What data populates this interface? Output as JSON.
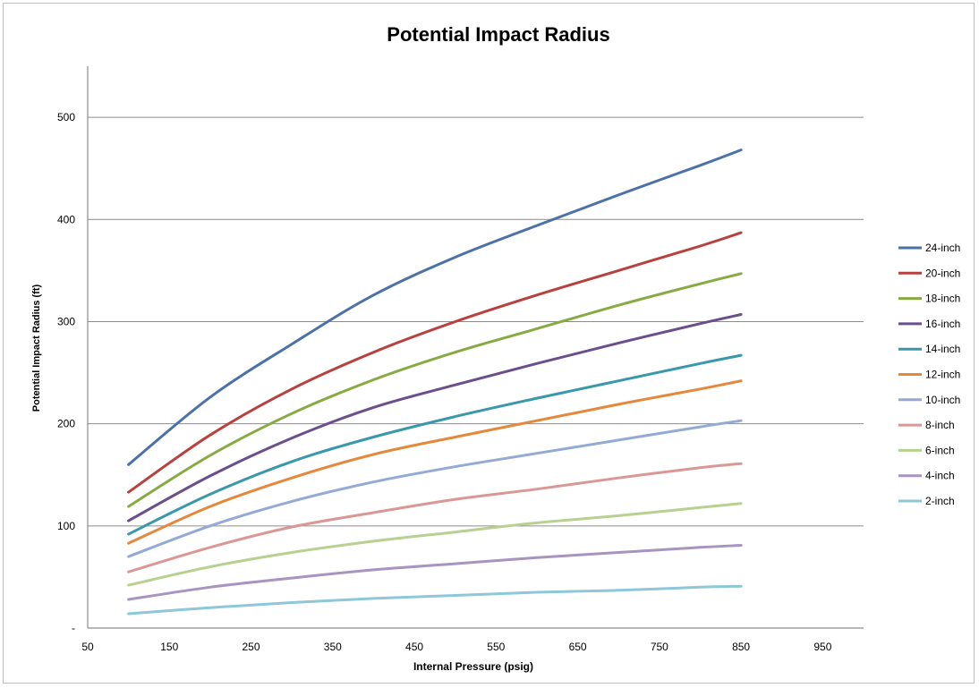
{
  "chart_data": {
    "type": "line",
    "title": "Potential Impact Radius",
    "xlabel": "Internal Pressure (psig)",
    "ylabel": "Potential Impact Radius (ft)",
    "xlim": [
      50,
      1000
    ],
    "ylim": [
      0,
      550
    ],
    "xticks": [
      50,
      150,
      250,
      350,
      450,
      550,
      650,
      750,
      850,
      950
    ],
    "yticks": [
      {
        "value": 0,
        "label": "-"
      },
      {
        "value": 100,
        "label": "100"
      },
      {
        "value": 200,
        "label": "200"
      },
      {
        "value": 300,
        "label": "300"
      },
      {
        "value": 400,
        "label": "400"
      },
      {
        "value": 500,
        "label": "500"
      }
    ],
    "grid": "horizontal",
    "legend_position": "right",
    "x": [
      100,
      200,
      300,
      400,
      500,
      600,
      700,
      800,
      850
    ],
    "series": [
      {
        "name": "24-inch",
        "color": "#4a72a8",
        "values": [
          160,
          226,
          278,
          326,
          363,
          394,
          424,
          453,
          468
        ]
      },
      {
        "name": "20-inch",
        "color": "#b8413e",
        "values": [
          133,
          189,
          234,
          270,
          300,
          326,
          350,
          374,
          387
        ]
      },
      {
        "name": "18-inch",
        "color": "#88aa42",
        "values": [
          119,
          169,
          210,
          243,
          270,
          293,
          316,
          337,
          347
        ]
      },
      {
        "name": "16-inch",
        "color": "#6b4f8c",
        "values": [
          105,
          149,
          186,
          216,
          238,
          259,
          279,
          298,
          307
        ]
      },
      {
        "name": "14-inch",
        "color": "#3a98ab",
        "values": [
          92,
          131,
          163,
          187,
          207,
          225,
          242,
          259,
          267
        ]
      },
      {
        "name": "12-inch",
        "color": "#e5883b",
        "values": [
          83,
          119,
          147,
          170,
          187,
          203,
          219,
          234,
          242
        ]
      },
      {
        "name": "10-inch",
        "color": "#93abd4",
        "values": [
          70,
          100,
          124,
          143,
          158,
          171,
          184,
          197,
          203
        ]
      },
      {
        "name": "8-inch",
        "color": "#d99795",
        "values": [
          55,
          79,
          99,
          113,
          126,
          136,
          147,
          157,
          161
        ]
      },
      {
        "name": "6-inch",
        "color": "#b8d090",
        "values": [
          42,
          60,
          74,
          85,
          94,
          103,
          110,
          118,
          122
        ]
      },
      {
        "name": "4-inch",
        "color": "#a894c0",
        "values": [
          28,
          40,
          49,
          57,
          63,
          69,
          74,
          79,
          81
        ]
      },
      {
        "name": "2-inch",
        "color": "#8ec7da",
        "values": [
          14,
          20,
          25,
          29,
          32,
          35,
          37,
          40,
          41
        ]
      }
    ]
  }
}
